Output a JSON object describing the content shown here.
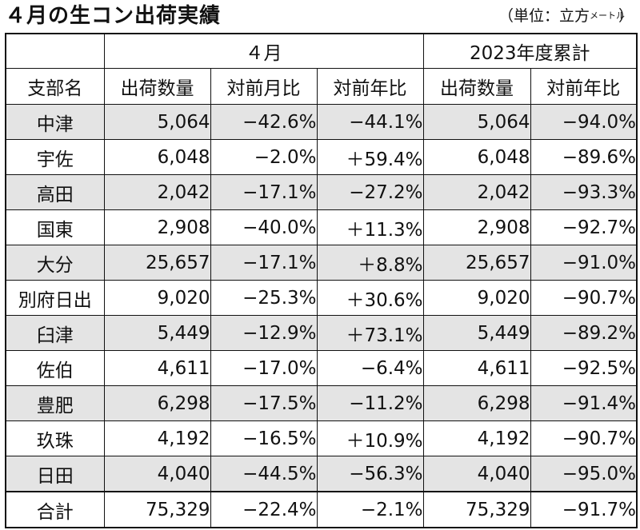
{
  "title": "４月の生コン出荷実績",
  "unit_main": "（単位：立方",
  "unit_small": "メートル",
  "unit_close": "）",
  "chart_data": {
    "type": "table",
    "header_groups": [
      "",
      "４月",
      "2023年度累計"
    ],
    "columns": [
      "支部名",
      "出荷数量",
      "対前月比",
      "対前年比",
      "出荷数量",
      "対前年比"
    ],
    "rows": [
      [
        "中津",
        "5,064",
        "−42.6%",
        "−44.1%",
        "5,064",
        "−94.0%"
      ],
      [
        "宇佐",
        "6,048",
        "−2.0%",
        "＋59.4%",
        "6,048",
        "−89.6%"
      ],
      [
        "高田",
        "2,042",
        "−17.1%",
        "−27.2%",
        "2,042",
        "−93.3%"
      ],
      [
        "国東",
        "2,908",
        "−40.0%",
        "＋11.3%",
        "2,908",
        "−92.7%"
      ],
      [
        "大分",
        "25,657",
        "−17.1%",
        "＋8.8%",
        "25,657",
        "−91.0%"
      ],
      [
        "別府日出",
        "9,020",
        "−25.3%",
        "＋30.6%",
        "9,020",
        "−90.7%"
      ],
      [
        "臼津",
        "5,449",
        "−12.9%",
        "＋73.1%",
        "5,449",
        "−89.2%"
      ],
      [
        "佐伯",
        "4,611",
        "−17.0%",
        "−6.4%",
        "4,611",
        "−92.5%"
      ],
      [
        "豊肥",
        "6,298",
        "−17.5%",
        "−11.2%",
        "6,298",
        "−91.4%"
      ],
      [
        "玖珠",
        "4,192",
        "−16.5%",
        "＋10.9%",
        "4,192",
        "−90.7%"
      ],
      [
        "日田",
        "4,040",
        "−44.5%",
        "−56.3%",
        "4,040",
        "−95.0%"
      ]
    ],
    "total": [
      "合計",
      "75,329",
      "−22.4%",
      "−2.1%",
      "75,329",
      "−91.7%"
    ],
    "shaded_color": "#e4e4e4"
  }
}
